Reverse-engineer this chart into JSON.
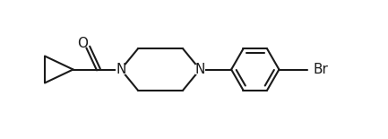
{
  "background_color": "#ffffff",
  "line_color": "#1a1a1a",
  "line_width": 1.5,
  "font_size": 10.5,
  "figsize": [
    4.33,
    1.55
  ],
  "dpi": 100,
  "xlim": [
    0.0,
    5.2
  ],
  "ylim": [
    -0.1,
    1.1
  ]
}
